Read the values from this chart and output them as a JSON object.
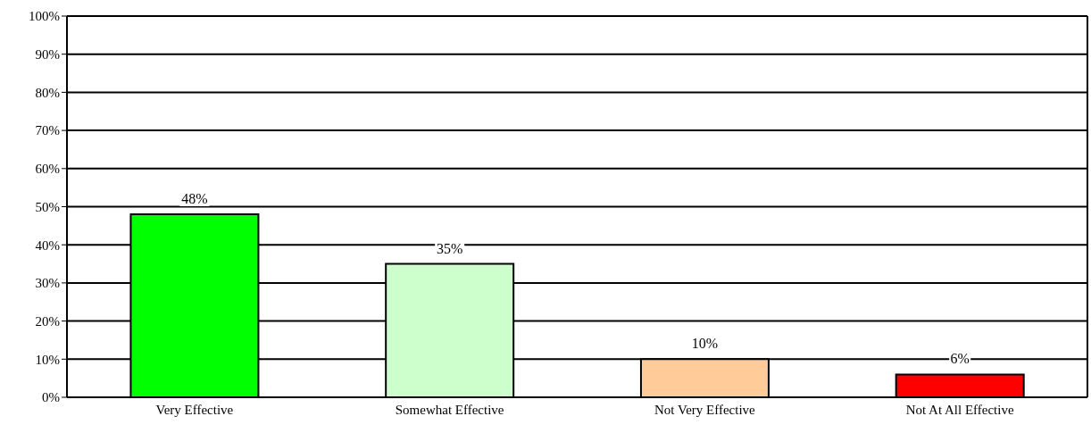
{
  "chart_data": {
    "type": "bar",
    "categories": [
      "Very Effective",
      "Somewhat Effective",
      "Not Very Effective",
      "Not At All Effective"
    ],
    "values": [
      48,
      35,
      10,
      6
    ],
    "colors": [
      "#00ff00",
      "#ccffcc",
      "#ffcc99",
      "#ff0000"
    ],
    "value_labels": [
      "48%",
      "35%",
      "10%",
      "6%"
    ],
    "ylim": [
      0,
      100
    ],
    "yticks": [
      {
        "value": 0,
        "label": "0%"
      },
      {
        "value": 10,
        "label": "10%"
      },
      {
        "value": 20,
        "label": "20%"
      },
      {
        "value": 30,
        "label": "30%"
      },
      {
        "value": 40,
        "label": "40%"
      },
      {
        "value": 50,
        "label": "50%"
      },
      {
        "value": 60,
        "label": "60%"
      },
      {
        "value": 70,
        "label": "70%"
      },
      {
        "value": 80,
        "label": "80%"
      },
      {
        "value": 90,
        "label": "90%"
      },
      {
        "value": 100,
        "label": "100%"
      }
    ],
    "grid": "y",
    "legend": false
  }
}
